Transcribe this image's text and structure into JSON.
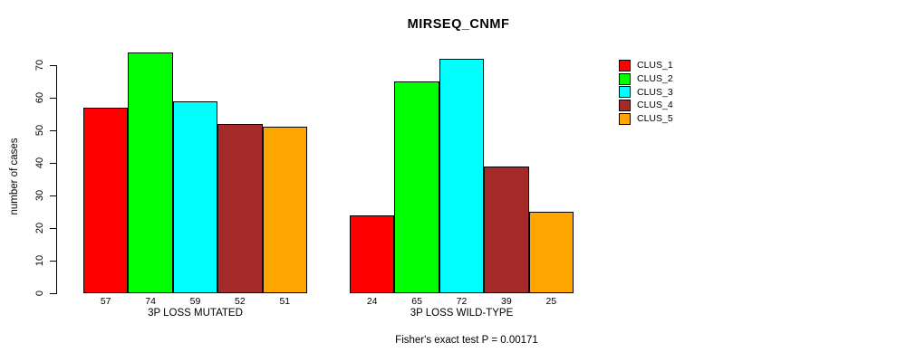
{
  "chart_data": {
    "type": "bar",
    "title": "MIRSEQ_CNMF",
    "ylabel": "number of cases",
    "xlabel": "",
    "ylim": [
      0,
      70
    ],
    "yticks": [
      0,
      10,
      20,
      30,
      40,
      50,
      60,
      70
    ],
    "grid": false,
    "legend_position": "right-outside",
    "bar_value_labels_shown": true,
    "series": [
      {
        "name": "CLUS_1",
        "color": "#FF0000"
      },
      {
        "name": "CLUS_2",
        "color": "#00FF00"
      },
      {
        "name": "CLUS_3",
        "color": "#00FFFF"
      },
      {
        "name": "CLUS_4",
        "color": "#A52A2A"
      },
      {
        "name": "CLUS_5",
        "color": "#FFA500"
      }
    ],
    "groups": [
      {
        "label": "3P LOSS MUTATED",
        "values": [
          57,
          74,
          59,
          52,
          51
        ]
      },
      {
        "label": "3P LOSS WILD-TYPE",
        "values": [
          24,
          65,
          72,
          39,
          25
        ]
      }
    ],
    "annotation": "Fisher's exact test P = 0.00171"
  }
}
